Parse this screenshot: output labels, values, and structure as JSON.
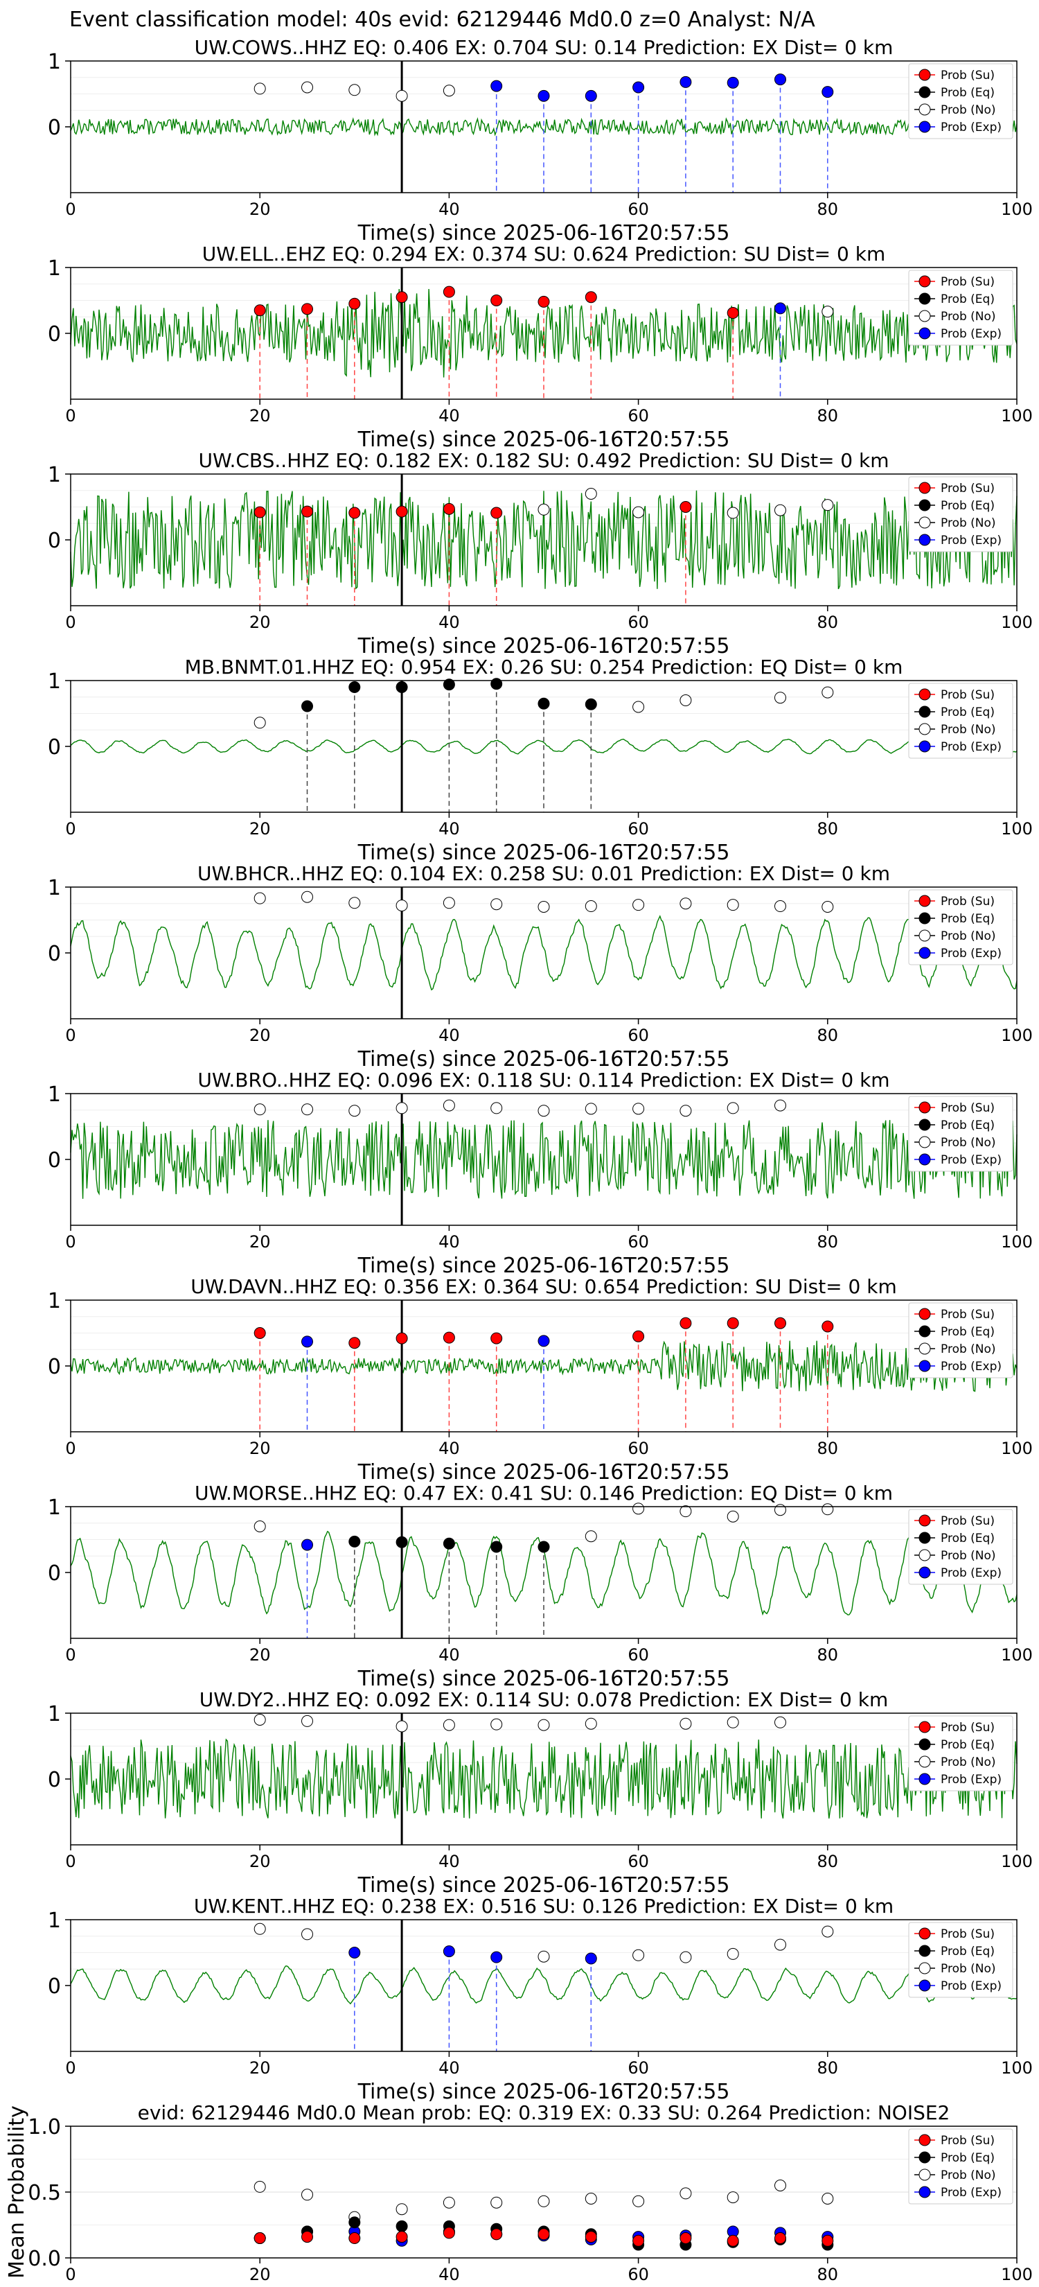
{
  "figure_title": "Event classification model: 40s evid: 62129446 Md0.0 z=0 Analyst: N/A",
  "colors": {
    "waveform": "#008000",
    "su": "#ff0000",
    "eq": "#000000",
    "no": "#ffffff",
    "exp": "#0000ff",
    "arrival_line": "#000000"
  },
  "legend": {
    "placement": "top-right",
    "entries": [
      {
        "key": "su",
        "label": "Prob (Su)"
      },
      {
        "key": "eq",
        "label": "Prob (Eq)"
      },
      {
        "key": "no",
        "label": "Prob (No)"
      },
      {
        "key": "exp",
        "label": "Prob (Exp)"
      }
    ]
  },
  "chart_data": [
    {
      "type": "line",
      "title": "UW.COWS..HHZ   EQ: 0.406  EX: 0.704  SU: 0.14   Prediction: EX    Dist= 0 km",
      "xlabel": "Time(s) since 2025-06-16T20:57:55",
      "xlim": [
        0,
        100
      ],
      "ylim": [
        -1,
        1
      ],
      "xticks": [
        0,
        20,
        40,
        60,
        80,
        100
      ],
      "yticks": [
        0,
        1
      ],
      "arrival_time": 35,
      "waveform": {
        "amp": 0.12,
        "style": "noise"
      },
      "points": [
        {
          "t": 20,
          "p": 0.58,
          "class": "no"
        },
        {
          "t": 25,
          "p": 0.6,
          "class": "no"
        },
        {
          "t": 30,
          "p": 0.56,
          "class": "no"
        },
        {
          "t": 35,
          "p": 0.47,
          "class": "no"
        },
        {
          "t": 40,
          "p": 0.55,
          "class": "no"
        },
        {
          "t": 45,
          "p": 0.62,
          "class": "exp"
        },
        {
          "t": 50,
          "p": 0.47,
          "class": "exp"
        },
        {
          "t": 55,
          "p": 0.47,
          "class": "exp"
        },
        {
          "t": 60,
          "p": 0.6,
          "class": "exp"
        },
        {
          "t": 65,
          "p": 0.68,
          "class": "exp"
        },
        {
          "t": 70,
          "p": 0.67,
          "class": "exp"
        },
        {
          "t": 75,
          "p": 0.72,
          "class": "exp"
        },
        {
          "t": 80,
          "p": 0.53,
          "class": "exp"
        }
      ]
    },
    {
      "type": "line",
      "title": "UW.ELL..EHZ   EQ: 0.294  EX: 0.374  SU: 0.624   Prediction: SU    Dist= 0 km",
      "xlabel": "Time(s) since 2025-06-16T20:57:55",
      "xlim": [
        0,
        100
      ],
      "ylim": [
        -1,
        1
      ],
      "xticks": [
        0,
        20,
        40,
        60,
        80,
        100
      ],
      "yticks": [
        0,
        1
      ],
      "arrival_time": 35,
      "waveform": {
        "amp": 0.45,
        "style": "noise"
      },
      "points": [
        {
          "t": 20,
          "p": 0.35,
          "class": "su"
        },
        {
          "t": 25,
          "p": 0.37,
          "class": "su"
        },
        {
          "t": 30,
          "p": 0.45,
          "class": "su"
        },
        {
          "t": 35,
          "p": 0.55,
          "class": "su"
        },
        {
          "t": 40,
          "p": 0.63,
          "class": "su"
        },
        {
          "t": 45,
          "p": 0.5,
          "class": "su"
        },
        {
          "t": 50,
          "p": 0.48,
          "class": "su"
        },
        {
          "t": 55,
          "p": 0.55,
          "class": "su"
        },
        {
          "t": 70,
          "p": 0.31,
          "class": "su"
        },
        {
          "t": 75,
          "p": 0.38,
          "class": "exp"
        },
        {
          "t": 80,
          "p": 0.33,
          "class": "no"
        }
      ]
    },
    {
      "type": "line",
      "title": "UW.CBS..HHZ   EQ: 0.182  EX: 0.182  SU: 0.492   Prediction: SU    Dist= 0 km",
      "xlabel": "Time(s) since 2025-06-16T20:57:55",
      "xlim": [
        0,
        100
      ],
      "ylim": [
        -1,
        1
      ],
      "xticks": [
        0,
        20,
        40,
        60,
        80,
        100
      ],
      "yticks": [
        0,
        1
      ],
      "arrival_time": 35,
      "waveform": {
        "amp": 0.75,
        "style": "noise"
      },
      "points": [
        {
          "t": 20,
          "p": 0.42,
          "class": "su"
        },
        {
          "t": 25,
          "p": 0.43,
          "class": "su"
        },
        {
          "t": 30,
          "p": 0.41,
          "class": "su"
        },
        {
          "t": 35,
          "p": 0.43,
          "class": "su"
        },
        {
          "t": 40,
          "p": 0.47,
          "class": "su"
        },
        {
          "t": 45,
          "p": 0.41,
          "class": "su"
        },
        {
          "t": 50,
          "p": 0.46,
          "class": "no"
        },
        {
          "t": 55,
          "p": 0.7,
          "class": "no"
        },
        {
          "t": 60,
          "p": 0.42,
          "class": "no"
        },
        {
          "t": 65,
          "p": 0.5,
          "class": "su"
        },
        {
          "t": 70,
          "p": 0.41,
          "class": "no"
        },
        {
          "t": 75,
          "p": 0.45,
          "class": "no"
        },
        {
          "t": 80,
          "p": 0.53,
          "class": "no"
        }
      ]
    },
    {
      "type": "line",
      "title": "MB.BNMT.01.HHZ   EQ: 0.954  EX: 0.26  SU: 0.254   Prediction: EQ    Dist= 0 km",
      "xlabel": "Time(s) since 2025-06-16T20:57:55",
      "xlim": [
        0,
        100
      ],
      "ylim": [
        -1,
        1
      ],
      "xticks": [
        0,
        20,
        40,
        60,
        80,
        100
      ],
      "yticks": [
        0,
        1
      ],
      "arrival_time": 35,
      "waveform": {
        "amp": 0.12,
        "style": "wave"
      },
      "points": [
        {
          "t": 20,
          "p": 0.36,
          "class": "no"
        },
        {
          "t": 25,
          "p": 0.61,
          "class": "eq"
        },
        {
          "t": 30,
          "p": 0.9,
          "class": "eq"
        },
        {
          "t": 35,
          "p": 0.9,
          "class": "eq"
        },
        {
          "t": 40,
          "p": 0.94,
          "class": "eq"
        },
        {
          "t": 45,
          "p": 0.95,
          "class": "eq"
        },
        {
          "t": 50,
          "p": 0.65,
          "class": "eq"
        },
        {
          "t": 55,
          "p": 0.64,
          "class": "eq"
        },
        {
          "t": 60,
          "p": 0.6,
          "class": "no"
        },
        {
          "t": 65,
          "p": 0.7,
          "class": "no"
        },
        {
          "t": 75,
          "p": 0.74,
          "class": "no"
        },
        {
          "t": 80,
          "p": 0.82,
          "class": "no"
        }
      ]
    },
    {
      "type": "line",
      "title": "UW.BHCR..HHZ   EQ: 0.104  EX: 0.258  SU: 0.01   Prediction: EX    Dist= 0 km",
      "xlabel": "Time(s) since 2025-06-16T20:57:55",
      "xlim": [
        0,
        100
      ],
      "ylim": [
        -1,
        1
      ],
      "xticks": [
        0,
        20,
        40,
        60,
        80,
        100
      ],
      "yticks": [
        0,
        1
      ],
      "arrival_time": 35,
      "waveform": {
        "amp": 0.6,
        "style": "wave"
      },
      "points": [
        {
          "t": 20,
          "p": 0.83,
          "class": "no"
        },
        {
          "t": 25,
          "p": 0.85,
          "class": "no"
        },
        {
          "t": 30,
          "p": 0.76,
          "class": "no"
        },
        {
          "t": 35,
          "p": 0.72,
          "class": "no"
        },
        {
          "t": 40,
          "p": 0.76,
          "class": "no"
        },
        {
          "t": 45,
          "p": 0.74,
          "class": "no"
        },
        {
          "t": 50,
          "p": 0.7,
          "class": "no"
        },
        {
          "t": 55,
          "p": 0.71,
          "class": "no"
        },
        {
          "t": 60,
          "p": 0.73,
          "class": "no"
        },
        {
          "t": 65,
          "p": 0.75,
          "class": "no"
        },
        {
          "t": 70,
          "p": 0.73,
          "class": "no"
        },
        {
          "t": 75,
          "p": 0.71,
          "class": "no"
        },
        {
          "t": 80,
          "p": 0.7,
          "class": "no"
        }
      ]
    },
    {
      "type": "line",
      "title": "UW.BRO..HHZ   EQ: 0.096  EX: 0.118  SU: 0.114   Prediction: EX    Dist= 0 km",
      "xlabel": "Time(s) since 2025-06-16T20:57:55",
      "xlim": [
        0,
        100
      ],
      "ylim": [
        -1,
        1
      ],
      "xticks": [
        0,
        20,
        40,
        60,
        80,
        100
      ],
      "yticks": [
        0,
        1
      ],
      "arrival_time": 35,
      "waveform": {
        "amp": 0.6,
        "style": "noise"
      },
      "points": [
        {
          "t": 20,
          "p": 0.76,
          "class": "no"
        },
        {
          "t": 25,
          "p": 0.76,
          "class": "no"
        },
        {
          "t": 30,
          "p": 0.74,
          "class": "no"
        },
        {
          "t": 35,
          "p": 0.78,
          "class": "no"
        },
        {
          "t": 40,
          "p": 0.82,
          "class": "no"
        },
        {
          "t": 45,
          "p": 0.78,
          "class": "no"
        },
        {
          "t": 50,
          "p": 0.74,
          "class": "no"
        },
        {
          "t": 55,
          "p": 0.77,
          "class": "no"
        },
        {
          "t": 60,
          "p": 0.77,
          "class": "no"
        },
        {
          "t": 65,
          "p": 0.74,
          "class": "no"
        },
        {
          "t": 70,
          "p": 0.78,
          "class": "no"
        },
        {
          "t": 75,
          "p": 0.82,
          "class": "no"
        }
      ]
    },
    {
      "type": "line",
      "title": "UW.DAVN..HHZ   EQ: 0.356  EX: 0.364  SU: 0.654   Prediction: SU    Dist= 0 km",
      "xlabel": "Time(s) since 2025-06-16T20:57:55",
      "xlim": [
        0,
        100
      ],
      "ylim": [
        -1,
        1
      ],
      "xticks": [
        0,
        20,
        40,
        60,
        80,
        100
      ],
      "yticks": [
        0,
        1
      ],
      "arrival_time": 35,
      "waveform": {
        "amp": 0.12,
        "style": "noise"
      },
      "points": [
        {
          "t": 20,
          "p": 0.5,
          "class": "su"
        },
        {
          "t": 25,
          "p": 0.37,
          "class": "exp"
        },
        {
          "t": 30,
          "p": 0.35,
          "class": "su"
        },
        {
          "t": 35,
          "p": 0.42,
          "class": "su"
        },
        {
          "t": 40,
          "p": 0.43,
          "class": "su"
        },
        {
          "t": 45,
          "p": 0.42,
          "class": "su"
        },
        {
          "t": 50,
          "p": 0.38,
          "class": "exp"
        },
        {
          "t": 60,
          "p": 0.45,
          "class": "su"
        },
        {
          "t": 65,
          "p": 0.65,
          "class": "su"
        },
        {
          "t": 70,
          "p": 0.65,
          "class": "su"
        },
        {
          "t": 75,
          "p": 0.65,
          "class": "su"
        },
        {
          "t": 80,
          "p": 0.6,
          "class": "su"
        }
      ]
    },
    {
      "type": "line",
      "title": "UW.MORSE..HHZ   EQ: 0.47  EX: 0.41  SU: 0.146   Prediction: EQ    Dist= 0 km",
      "xlabel": "Time(s) since 2025-06-16T20:57:55",
      "xlim": [
        0,
        100
      ],
      "ylim": [
        -1,
        1
      ],
      "xticks": [
        0,
        20,
        40,
        60,
        80,
        100
      ],
      "yticks": [
        0,
        1
      ],
      "arrival_time": 35,
      "waveform": {
        "amp": 0.65,
        "style": "wave"
      },
      "points": [
        {
          "t": 20,
          "p": 0.7,
          "class": "no"
        },
        {
          "t": 25,
          "p": 0.42,
          "class": "exp"
        },
        {
          "t": 30,
          "p": 0.47,
          "class": "eq"
        },
        {
          "t": 35,
          "p": 0.46,
          "class": "eq"
        },
        {
          "t": 40,
          "p": 0.44,
          "class": "eq"
        },
        {
          "t": 45,
          "p": 0.39,
          "class": "eq"
        },
        {
          "t": 50,
          "p": 0.39,
          "class": "eq"
        },
        {
          "t": 55,
          "p": 0.55,
          "class": "no"
        },
        {
          "t": 60,
          "p": 0.97,
          "class": "no"
        },
        {
          "t": 65,
          "p": 0.93,
          "class": "no"
        },
        {
          "t": 70,
          "p": 0.85,
          "class": "no"
        },
        {
          "t": 75,
          "p": 0.95,
          "class": "no"
        },
        {
          "t": 80,
          "p": 0.96,
          "class": "no"
        }
      ]
    },
    {
      "type": "line",
      "title": "UW.DY2..HHZ   EQ: 0.092  EX: 0.114  SU: 0.078   Prediction: EX    Dist= 0 km",
      "xlabel": "Time(s) since 2025-06-16T20:57:55",
      "xlim": [
        0,
        100
      ],
      "ylim": [
        -1,
        1
      ],
      "xticks": [
        0,
        20,
        40,
        60,
        80,
        100
      ],
      "yticks": [
        0,
        1
      ],
      "arrival_time": 35,
      "waveform": {
        "amp": 0.6,
        "style": "noise"
      },
      "points": [
        {
          "t": 20,
          "p": 0.9,
          "class": "no"
        },
        {
          "t": 25,
          "p": 0.88,
          "class": "no"
        },
        {
          "t": 35,
          "p": 0.8,
          "class": "no"
        },
        {
          "t": 40,
          "p": 0.82,
          "class": "no"
        },
        {
          "t": 45,
          "p": 0.83,
          "class": "no"
        },
        {
          "t": 50,
          "p": 0.82,
          "class": "no"
        },
        {
          "t": 55,
          "p": 0.84,
          "class": "no"
        },
        {
          "t": 65,
          "p": 0.84,
          "class": "no"
        },
        {
          "t": 70,
          "p": 0.86,
          "class": "no"
        },
        {
          "t": 75,
          "p": 0.86,
          "class": "no"
        }
      ]
    },
    {
      "type": "line",
      "title": "UW.KENT..HHZ   EQ: 0.238  EX: 0.516  SU: 0.126   Prediction: EX    Dist= 0 km",
      "xlabel": "Time(s) since 2025-06-16T20:57:55",
      "xlim": [
        0,
        100
      ],
      "ylim": [
        -1,
        1
      ],
      "xticks": [
        0,
        20,
        40,
        60,
        80,
        100
      ],
      "yticks": [
        0,
        1
      ],
      "arrival_time": 35,
      "waveform": {
        "amp": 0.3,
        "style": "wave"
      },
      "points": [
        {
          "t": 20,
          "p": 0.86,
          "class": "no"
        },
        {
          "t": 25,
          "p": 0.78,
          "class": "no"
        },
        {
          "t": 30,
          "p": 0.5,
          "class": "exp"
        },
        {
          "t": 40,
          "p": 0.52,
          "class": "exp"
        },
        {
          "t": 45,
          "p": 0.43,
          "class": "exp"
        },
        {
          "t": 50,
          "p": 0.44,
          "class": "no"
        },
        {
          "t": 55,
          "p": 0.41,
          "class": "exp"
        },
        {
          "t": 60,
          "p": 0.46,
          "class": "no"
        },
        {
          "t": 65,
          "p": 0.43,
          "class": "no"
        },
        {
          "t": 70,
          "p": 0.48,
          "class": "no"
        },
        {
          "t": 75,
          "p": 0.62,
          "class": "no"
        },
        {
          "t": 80,
          "p": 0.82,
          "class": "no"
        }
      ]
    },
    {
      "type": "scatter",
      "title": "evid: 62129446  Md0.0   Mean prob:   EQ: 0.319  EX: 0.33  SU: 0.264   Prediction: NOISE2",
      "xlabel": "",
      "ylabel": "Mean Probability",
      "xlim": [
        0,
        100
      ],
      "ylim": [
        0,
        1
      ],
      "xticks": [
        0,
        20,
        40,
        60,
        80,
        100
      ],
      "yticks": [
        0.0,
        0.5,
        1.0
      ],
      "x": [
        20,
        25,
        30,
        35,
        40,
        45,
        50,
        55,
        60,
        65,
        70,
        75,
        80
      ],
      "series": [
        {
          "name": "Prob (Su)",
          "key": "su",
          "values": [
            0.15,
            0.16,
            0.15,
            0.16,
            0.19,
            0.18,
            0.18,
            0.16,
            0.13,
            0.15,
            0.13,
            0.15,
            0.13
          ]
        },
        {
          "name": "Prob (Eq)",
          "key": "eq",
          "values": [
            0.15,
            0.2,
            0.27,
            0.24,
            0.24,
            0.22,
            0.2,
            0.18,
            0.1,
            0.1,
            0.12,
            0.14,
            0.1
          ]
        },
        {
          "name": "Prob (No)",
          "key": "no",
          "values": [
            0.54,
            0.48,
            0.31,
            0.37,
            0.42,
            0.42,
            0.43,
            0.45,
            0.43,
            0.49,
            0.46,
            0.55,
            0.45
          ]
        },
        {
          "name": "Prob (Exp)",
          "key": "exp",
          "values": [
            0.15,
            0.2,
            0.2,
            0.13,
            0.2,
            0.18,
            0.17,
            0.14,
            0.16,
            0.17,
            0.2,
            0.19,
            0.16
          ]
        }
      ]
    }
  ]
}
